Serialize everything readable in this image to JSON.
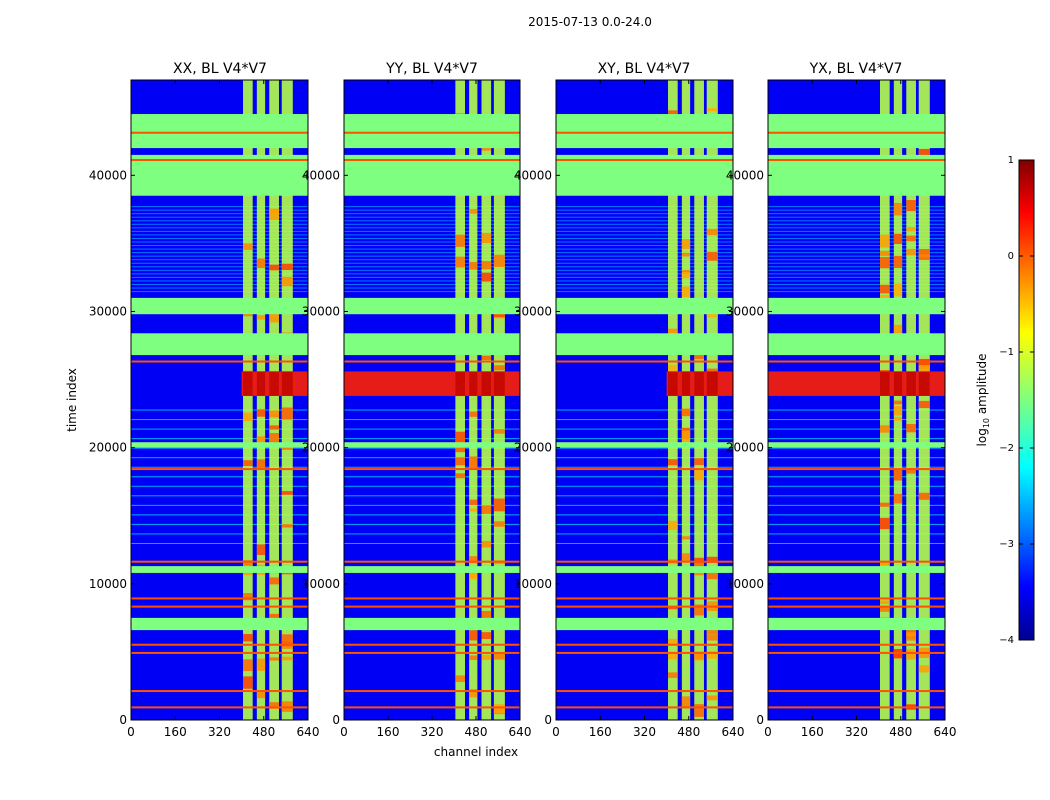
{
  "chart_data": {
    "type": "heatmap",
    "suptitle": "2015-07-13 0.0-24.0",
    "panels": [
      {
        "title": "XX, BL V4*V7"
      },
      {
        "title": "YY, BL V4*V7"
      },
      {
        "title": "XY, BL V4*V7"
      },
      {
        "title": "YX, BL V4*V7"
      }
    ],
    "xlabel": "channel index",
    "ylabel": "time index",
    "xlim": [
      0,
      640
    ],
    "ylim": [
      0,
      47000
    ],
    "xticks": [
      0,
      160,
      320,
      480,
      640
    ],
    "yticks": [
      0,
      10000,
      20000,
      30000,
      40000
    ],
    "colorbar": {
      "label": "log",
      "label_sub": "10",
      "label_rest": " amplitude",
      "vmin": -4,
      "vmax": 1,
      "ticks": [
        -4,
        -3,
        -2,
        -1,
        0,
        1
      ],
      "colormap": "jet"
    },
    "features": {
      "rfi_channel_ranges": [
        [
          405,
          440
        ],
        [
          455,
          485
        ],
        [
          500,
          535
        ],
        [
          545,
          585
        ]
      ],
      "flagged_time_bands": [
        [
          42000,
          44500
        ],
        [
          38500,
          41500
        ],
        [
          29800,
          31000
        ],
        [
          26800,
          28400
        ],
        [
          20000,
          20400
        ],
        [
          10800,
          11300
        ],
        [
          6600,
          7500
        ]
      ],
      "intense_time_bands": [
        [
          23800,
          25600
        ]
      ],
      "background_level": -3.5,
      "flagged_level": -1.5,
      "rfi_level": -1.2,
      "intense_level": 0.3
    }
  }
}
